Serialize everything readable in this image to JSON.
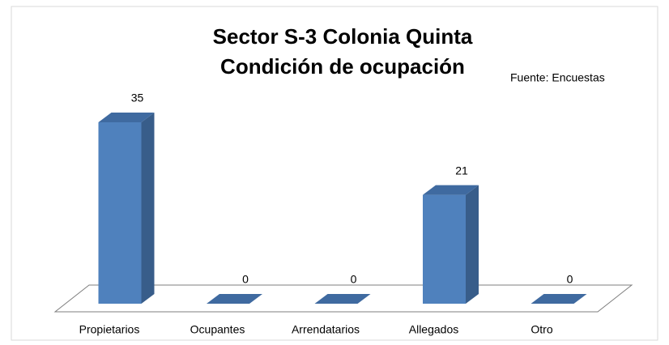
{
  "chart_data": {
    "type": "bar3d",
    "title": [
      "Sector S-3 Colonia Quinta",
      "Condición de ocupación"
    ],
    "annotation": "Fuente: Encuestas",
    "categories": [
      "Propietarios",
      "Ocupantes",
      "Arrendatarios",
      "Allegados",
      "Otro"
    ],
    "values": [
      35,
      0,
      0,
      21,
      0
    ],
    "color": "#4f81bd"
  }
}
